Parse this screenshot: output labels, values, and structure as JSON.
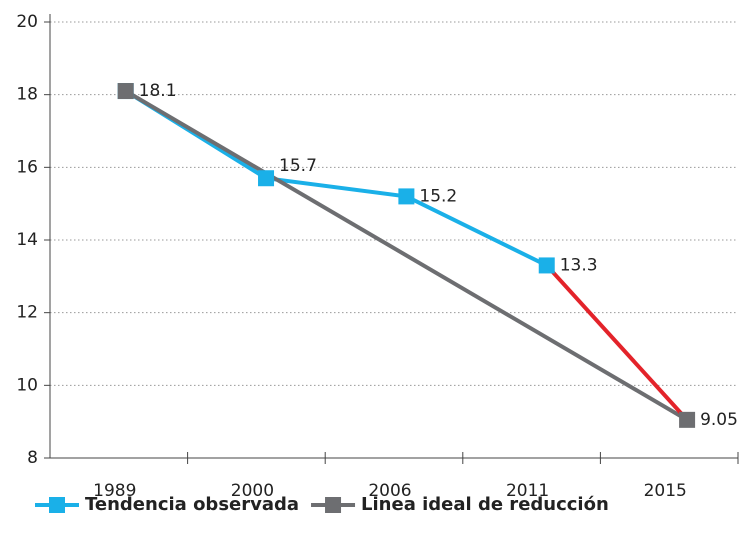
{
  "chart_data": {
    "type": "line",
    "categories": [
      "1989",
      "2000",
      "2006",
      "2011",
      "2015"
    ],
    "series": [
      {
        "name": "Tendencia observada",
        "color": "#1ab0e8",
        "values": [
          18.1,
          15.7,
          15.2,
          13.3,
          null
        ]
      },
      {
        "name": "Linea ideal de reducción",
        "color": "#6d6e71",
        "values": [
          18.1,
          null,
          null,
          null,
          9.05
        ],
        "spanGaps": true
      },
      {
        "color": "#e3232a",
        "values": [
          null,
          null,
          null,
          13.3,
          9.05
        ],
        "markers": false
      }
    ],
    "ylim": [
      8,
      20
    ],
    "yticks": [
      8,
      10,
      12,
      14,
      16,
      18,
      20
    ],
    "grid": true,
    "legend": "bottom"
  }
}
